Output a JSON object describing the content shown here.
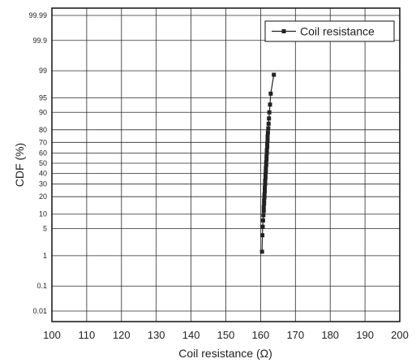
{
  "chart_data": {
    "type": "line",
    "title": "",
    "xlabel": "Coil resistance  (Ω)",
    "ylabel": "CDF (%)",
    "xlim": [
      100,
      200
    ],
    "x_ticks": [
      "100",
      "110",
      "120",
      "130",
      "140",
      "150",
      "160",
      "170",
      "180",
      "190",
      "200"
    ],
    "y_scale": "normal-probability",
    "y_ticks": [
      "0.01",
      "0.1",
      "1",
      "5",
      "10",
      "20",
      "30",
      "40",
      "50",
      "60",
      "70",
      "80",
      "90",
      "95",
      "99",
      "99.9",
      "99.99"
    ],
    "grid": true,
    "legend_position": "top-right",
    "series": [
      {
        "name": "Coil resistance",
        "color": "#222222",
        "marker": "square",
        "points": [
          {
            "x": 160.4,
            "y": 1.3
          },
          {
            "x": 160.5,
            "y": 3.5
          },
          {
            "x": 160.6,
            "y": 5.5
          },
          {
            "x": 160.7,
            "y": 7.5
          },
          {
            "x": 160.8,
            "y": 9.5
          },
          {
            "x": 160.9,
            "y": 11.5
          },
          {
            "x": 160.9,
            "y": 13.5
          },
          {
            "x": 161.0,
            "y": 15.5
          },
          {
            "x": 161.0,
            "y": 17.5
          },
          {
            "x": 161.1,
            "y": 19.5
          },
          {
            "x": 161.1,
            "y": 21.5
          },
          {
            "x": 161.2,
            "y": 24
          },
          {
            "x": 161.2,
            "y": 27
          },
          {
            "x": 161.3,
            "y": 30
          },
          {
            "x": 161.3,
            "y": 33
          },
          {
            "x": 161.4,
            "y": 36
          },
          {
            "x": 161.4,
            "y": 39
          },
          {
            "x": 161.5,
            "y": 42
          },
          {
            "x": 161.5,
            "y": 45
          },
          {
            "x": 161.6,
            "y": 48
          },
          {
            "x": 161.6,
            "y": 51
          },
          {
            "x": 161.7,
            "y": 54
          },
          {
            "x": 161.7,
            "y": 57
          },
          {
            "x": 161.8,
            "y": 60
          },
          {
            "x": 161.8,
            "y": 63
          },
          {
            "x": 161.9,
            "y": 66
          },
          {
            "x": 161.9,
            "y": 69
          },
          {
            "x": 162.0,
            "y": 72
          },
          {
            "x": 162.0,
            "y": 75
          },
          {
            "x": 162.1,
            "y": 78
          },
          {
            "x": 162.2,
            "y": 81
          },
          {
            "x": 162.3,
            "y": 84
          },
          {
            "x": 162.4,
            "y": 87
          },
          {
            "x": 162.5,
            "y": 90
          },
          {
            "x": 162.7,
            "y": 93
          },
          {
            "x": 162.9,
            "y": 96
          },
          {
            "x": 163.8,
            "y": 98.7
          }
        ]
      }
    ]
  }
}
